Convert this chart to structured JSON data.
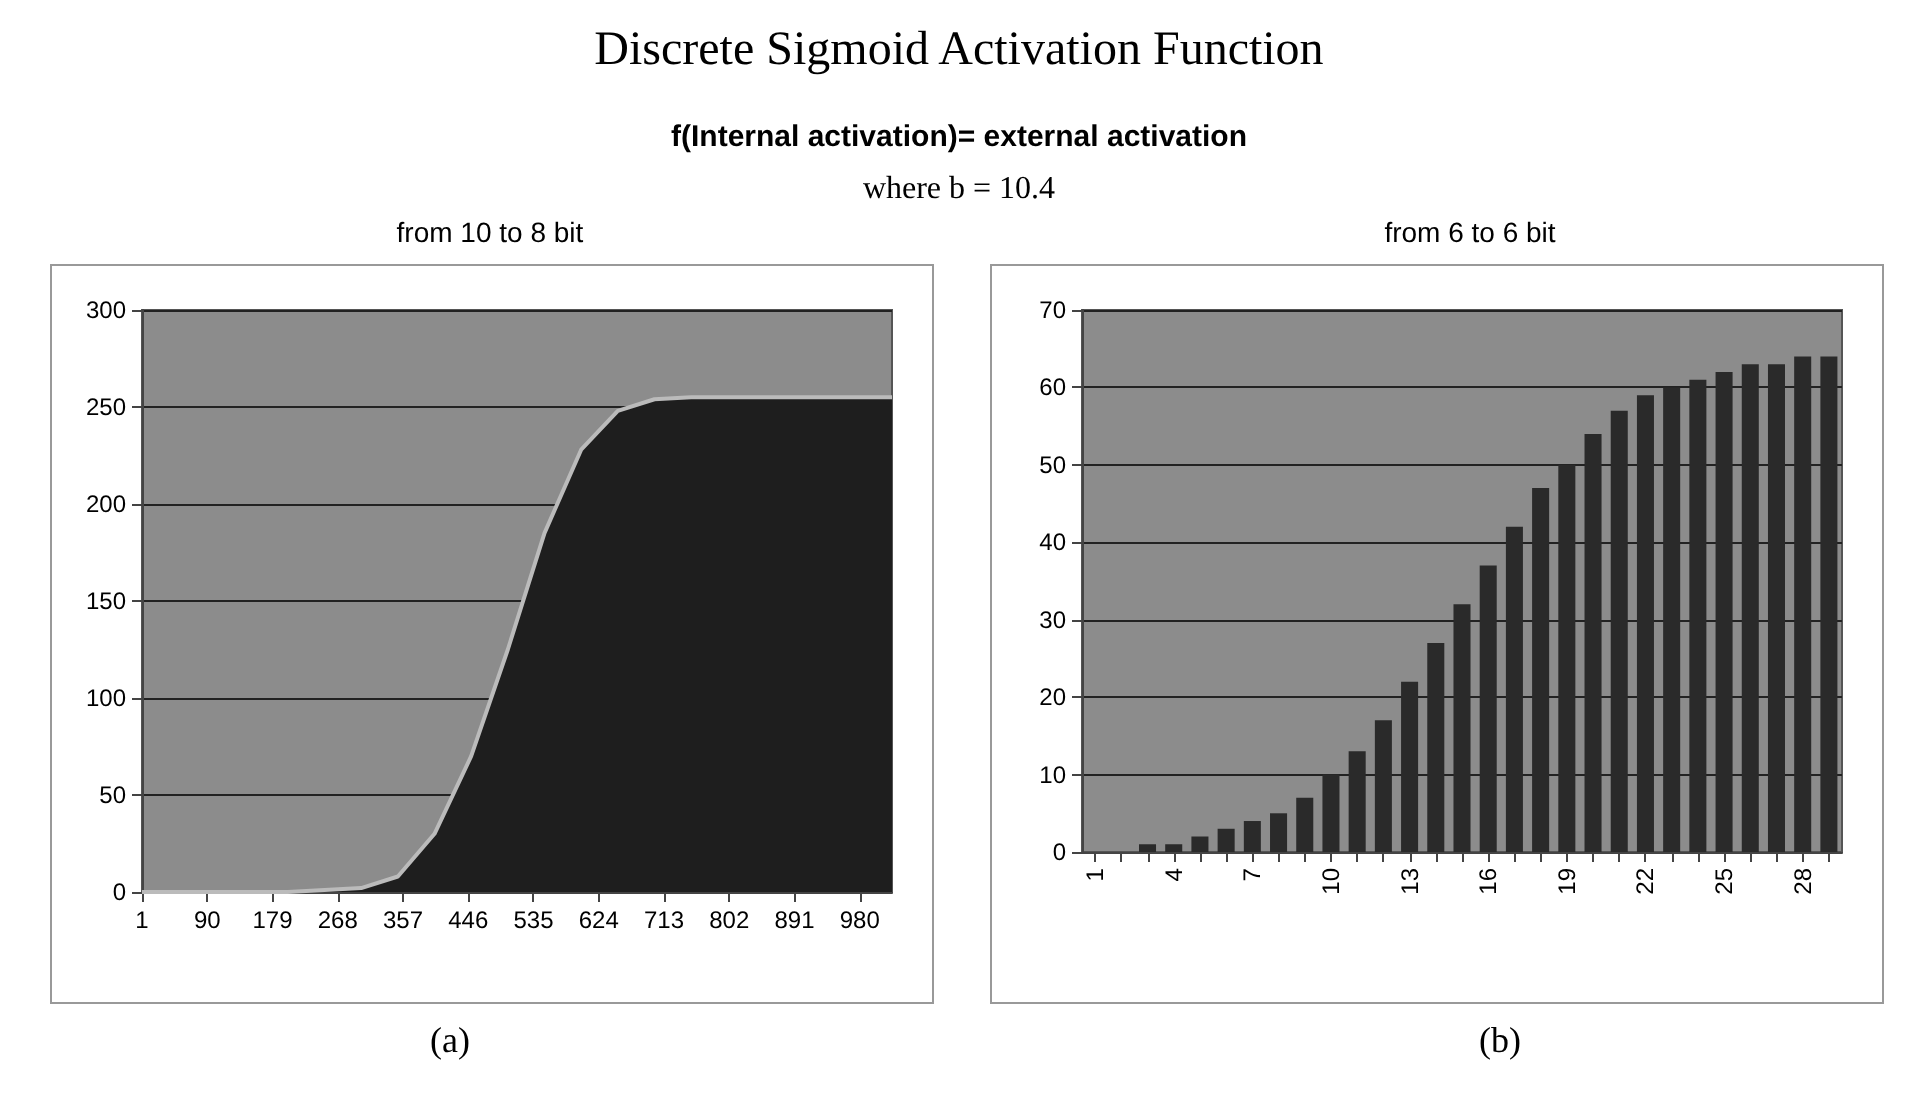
{
  "chart_data": [
    {
      "type": "area",
      "title": "from 10 to 8 bit",
      "annotations": [
        "Discrete Sigmoid Activation Function",
        "f(Internal activation)= external activation",
        "where b = 10.4",
        "(a)"
      ],
      "x": [
        1,
        200,
        300,
        350,
        400,
        450,
        500,
        550,
        600,
        650,
        700,
        750,
        1024
      ],
      "values": [
        0,
        0,
        2,
        8,
        30,
        70,
        125,
        185,
        228,
        248,
        254,
        255,
        255
      ],
      "color": "#1e1e1e",
      "xlim": [
        1,
        1024
      ],
      "xticks": [
        1,
        90,
        179,
        268,
        357,
        446,
        535,
        624,
        713,
        802,
        891,
        980
      ],
      "ylim": [
        0,
        300
      ],
      "yticks": [
        0,
        50,
        100,
        150,
        200,
        250,
        300
      ],
      "grid": "y",
      "marker": "none"
    },
    {
      "type": "bar",
      "title": "from 6 to 6 bit",
      "annotations": [
        "(b)"
      ],
      "categories": [
        "1",
        null,
        null,
        "4",
        null,
        null,
        "7",
        null,
        null,
        "10",
        null,
        null,
        "13",
        null,
        null,
        "16",
        null,
        null,
        "19",
        null,
        null,
        "22",
        null,
        null,
        "25",
        null,
        null,
        "28",
        null
      ],
      "values": [
        0,
        0,
        1,
        1,
        2,
        3,
        4,
        5,
        7,
        10,
        13,
        17,
        22,
        27,
        32,
        37,
        42,
        47,
        50,
        54,
        57,
        59,
        60,
        61,
        62,
        63,
        63,
        64,
        64
      ],
      "color": "#2a2a2a",
      "ylim": [
        0,
        70
      ],
      "yticks": [
        0,
        10,
        20,
        30,
        40,
        50,
        60,
        70
      ],
      "grid": "y"
    }
  ]
}
